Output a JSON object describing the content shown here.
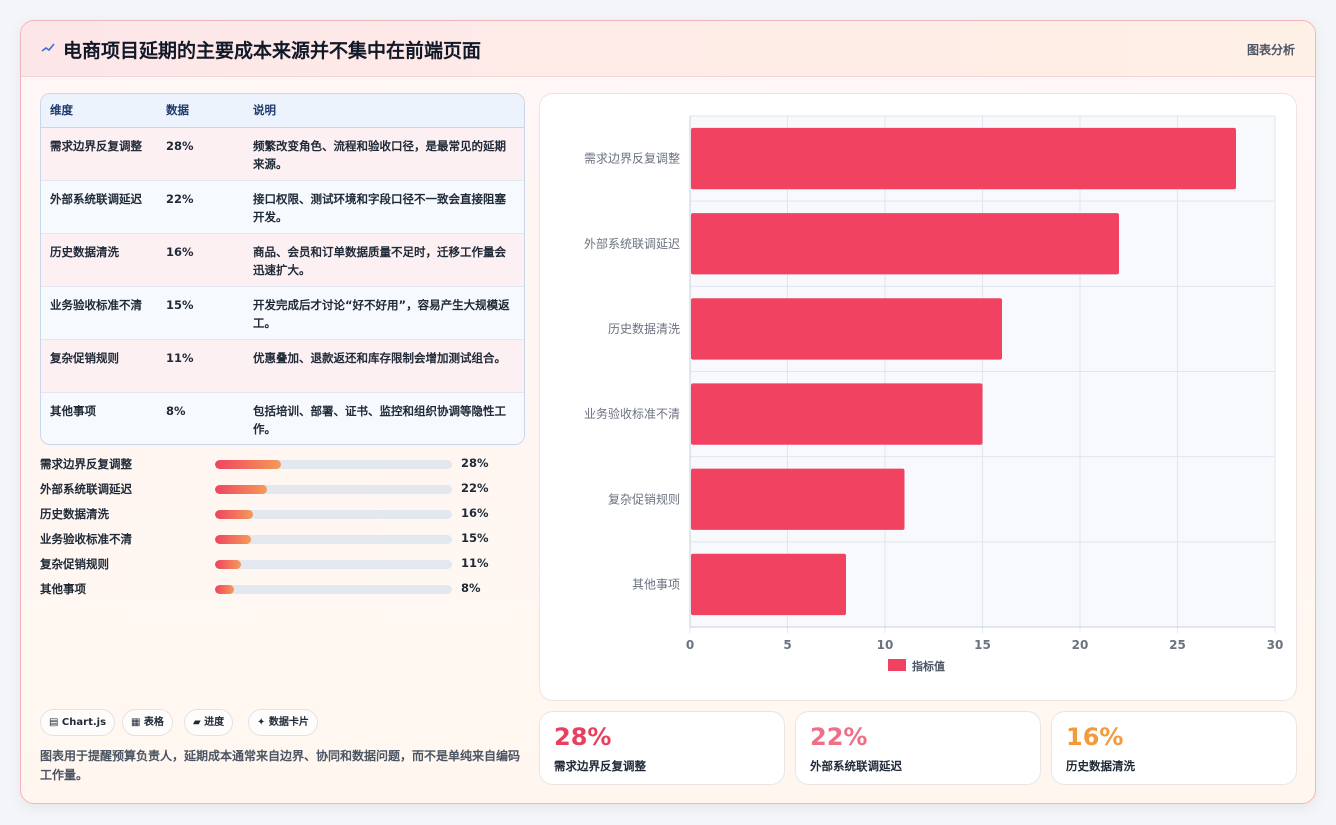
{
  "header": {
    "title": "电商项目延期的主要成本来源并不集中在前端页面",
    "link_label": "图表分析",
    "icon": "chart-pulse-icon"
  },
  "table": {
    "headers": [
      "维度",
      "数据",
      "说明"
    ],
    "rows": [
      {
        "dim": "需求边界反复调整",
        "value": "28%",
        "desc": "频繁改变角色、流程和验收口径，是最常见的延期来源。"
      },
      {
        "dim": "外部系统联调延迟",
        "value": "22%",
        "desc": "接口权限、测试环境和字段口径不一致会直接阻塞开发。"
      },
      {
        "dim": "历史数据清洗",
        "value": "16%",
        "desc": "商品、会员和订单数据质量不足时，迁移工作量会迅速扩大。"
      },
      {
        "dim": "业务验收标准不清",
        "value": "15%",
        "desc": "开发完成后才讨论“好不好用”，容易产生大规模返工。"
      },
      {
        "dim": "复杂促销规则",
        "value": "11%",
        "desc": "优惠叠加、退款返还和库存限制会增加测试组合。"
      },
      {
        "dim": "其他事项",
        "value": "8%",
        "desc": "包括培训、部署、证书、监控和组织协调等隐性工作。"
      }
    ]
  },
  "progress": [
    {
      "label": "需求边界反复调整",
      "value_text": "28%",
      "fraction": 0.28
    },
    {
      "label": "外部系统联调延迟",
      "value_text": "22%",
      "fraction": 0.22
    },
    {
      "label": "历史数据清洗",
      "value_text": "16%",
      "fraction": 0.16
    },
    {
      "label": "业务验收标准不清",
      "value_text": "15%",
      "fraction": 0.15
    },
    {
      "label": "复杂促销规则",
      "value_text": "11%",
      "fraction": 0.11
    },
    {
      "label": "其他事项",
      "value_text": "8%",
      "fraction": 0.08
    }
  ],
  "chips": [
    "▤ Chart.js",
    "▦ 表格",
    "▰ 进度",
    "✦ 数据卡片"
  ],
  "description": "图表用于提醒预算负责人，延期成本通常来自边界、协同和数据问题，而不是单纯来自编码工作量。",
  "stats": [
    {
      "value": "28%",
      "label": "需求边界反复调整",
      "color": "#e8415f"
    },
    {
      "value": "22%",
      "label": "外部系统联调延迟",
      "color": "#ef6f86"
    },
    {
      "value": "16%",
      "label": "历史数据清洗",
      "color": "#f39a3f"
    }
  ],
  "chart_data": {
    "type": "bar",
    "orientation": "horizontal",
    "categories": [
      "需求边界反复调整",
      "外部系统联调延迟",
      "历史数据清洗",
      "业务验收标准不清",
      "复杂促销规则",
      "其他事项"
    ],
    "series": [
      {
        "name": "指标值",
        "values": [
          28,
          22,
          16,
          15,
          11,
          8
        ],
        "color": "#f24262"
      }
    ],
    "xlim": [
      0,
      30
    ],
    "xticks": [
      0,
      5,
      10,
      15,
      20,
      25,
      30
    ],
    "grid": true,
    "legend": "bottom",
    "title": "",
    "xlabel": "",
    "ylabel": ""
  }
}
